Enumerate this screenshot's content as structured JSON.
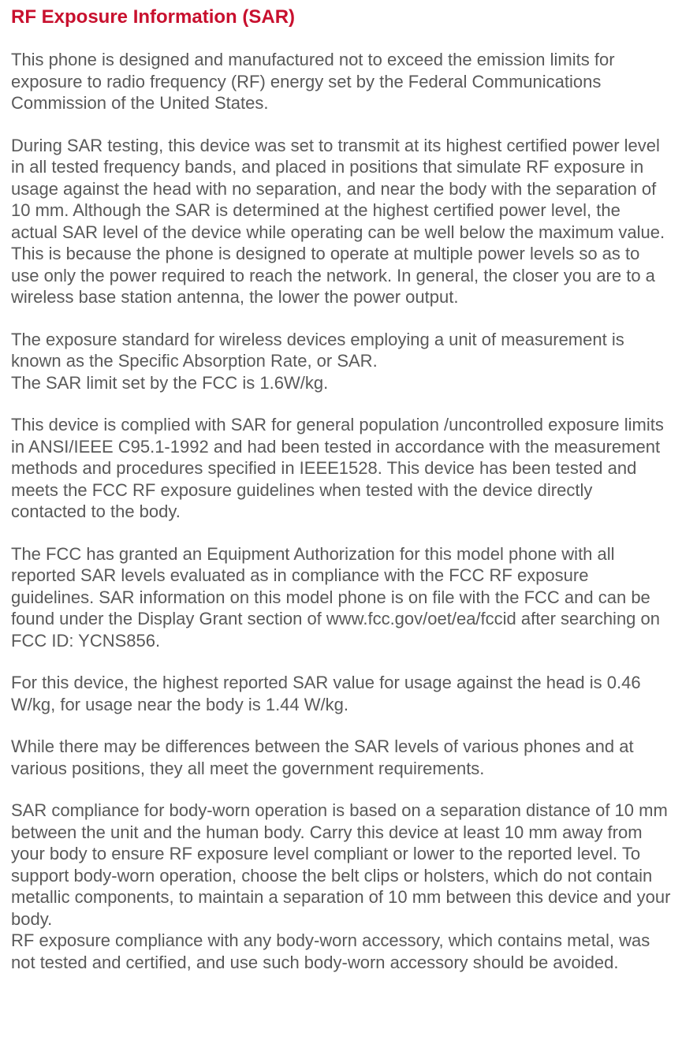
{
  "title": "RF Exposure Information (SAR)",
  "paragraphs": {
    "p1": "This phone is designed and manufactured not to exceed the emission limits for exposure to radio frequency (RF) energy set by the Federal Communications Commission of the United States.",
    "p2": "During SAR testing, this device was set to transmit at its highest certified power level in all tested frequency bands, and placed in positions that simulate RF exposure in usage against the head with no separation, and near the body with the separation of 10 mm. Although the SAR is determined at the highest certified power level, the actual SAR level of the device while operating can be well below the maximum value.   This is because the phone is designed to operate at multiple power levels so as to use only the power required to reach the network.   In general, the closer you are to a wireless base station antenna, the lower the power output.",
    "p3a": "The exposure standard for wireless devices employing a unit of measurement is known as the Specific Absorption Rate, or SAR.",
    "p3b": "The SAR limit set by the FCC is 1.6W/kg.",
    "p4": "This device is complied with SAR for general population /uncontrolled exposure limits in ANSI/IEEE C95.1-1992 and had been tested in accordance with the measurement methods and procedures specified in IEEE1528. This device has been tested and meets the FCC RF exposure guidelines when tested with the device directly contacted to the body.",
    "p5": "The FCC has granted an Equipment Authorization for this model phone with all reported SAR levels evaluated as in compliance with the FCC RF exposure guidelines. SAR information on this model phone is on file with the FCC and can be found under the Display Grant section of www.fcc.gov/oet/ea/fccid after searching on FCC ID: YCNS856.",
    "p6": "For this device, the highest reported SAR value for usage against the head is 0.46 W/kg, for usage near the body is 1.44 W/kg.",
    "p7": "While there may be differences between the SAR levels of various phones and at various positions, they all meet the government requirements.",
    "p8a": "SAR compliance for body-worn operation is based on a separation distance of 10 mm between the unit and the human body. Carry this device at least 10 mm away from your body to ensure RF exposure level compliant or lower to the reported level. To support body-worn operation, choose the belt clips or holsters, which do not contain metallic components, to maintain a separation of 10 mm between this device and your body.",
    "p8b": "RF exposure compliance with any body-worn accessory, which contains metal, was not tested and certified, and use such body-worn accessory should be avoided."
  },
  "colors": {
    "heading": "#c8102e",
    "body_text": "#595959",
    "background": "#ffffff"
  },
  "typography": {
    "heading_fontsize": 24,
    "body_fontsize": 22,
    "line_height": 1.25
  }
}
